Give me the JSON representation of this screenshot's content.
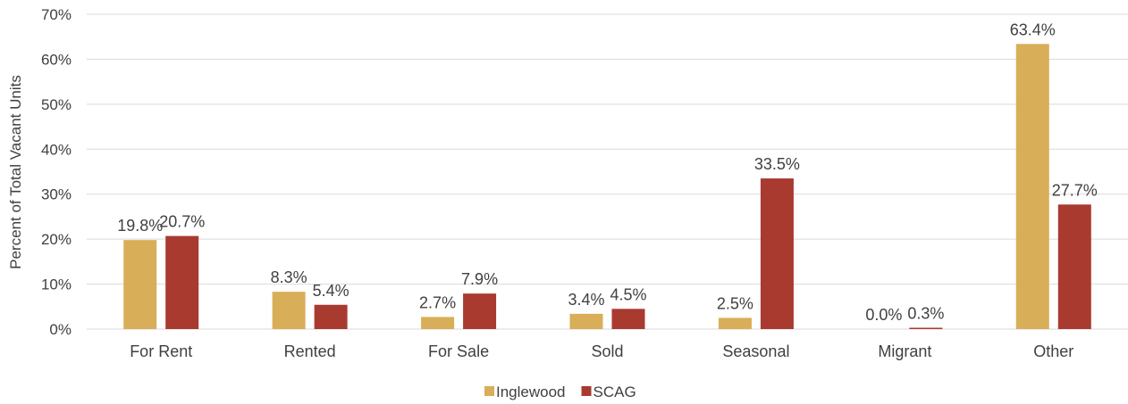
{
  "chart_data": {
    "type": "bar",
    "title": "",
    "xlabel": "",
    "ylabel": "Percent of Total Vacant Units",
    "ylim": [
      0,
      70
    ],
    "yticks": [
      0,
      10,
      20,
      30,
      40,
      50,
      60,
      70
    ],
    "ytick_labels": [
      "0%",
      "10%",
      "20%",
      "30%",
      "40%",
      "50%",
      "60%",
      "70%"
    ],
    "grid": true,
    "legend_position": "bottom",
    "categories": [
      "For Rent",
      "Rented",
      "For Sale",
      "Sold",
      "Seasonal",
      "Migrant",
      "Other"
    ],
    "series": [
      {
        "name": "Inglewood",
        "color": "#d9ae58",
        "values": [
          19.8,
          8.3,
          2.7,
          3.4,
          2.5,
          0.0,
          63.4
        ],
        "labels": [
          "19.8%",
          "8.3%",
          "2.7%",
          "3.4%",
          "2.5%",
          "0.0%",
          "63.4%"
        ]
      },
      {
        "name": "SCAG",
        "color": "#a93a30",
        "values": [
          20.7,
          5.4,
          7.9,
          4.5,
          33.5,
          0.3,
          27.7
        ],
        "labels": [
          "20.7%",
          "5.4%",
          "7.9%",
          "4.5%",
          "33.5%",
          "0.3%",
          "27.7%"
        ]
      }
    ]
  }
}
